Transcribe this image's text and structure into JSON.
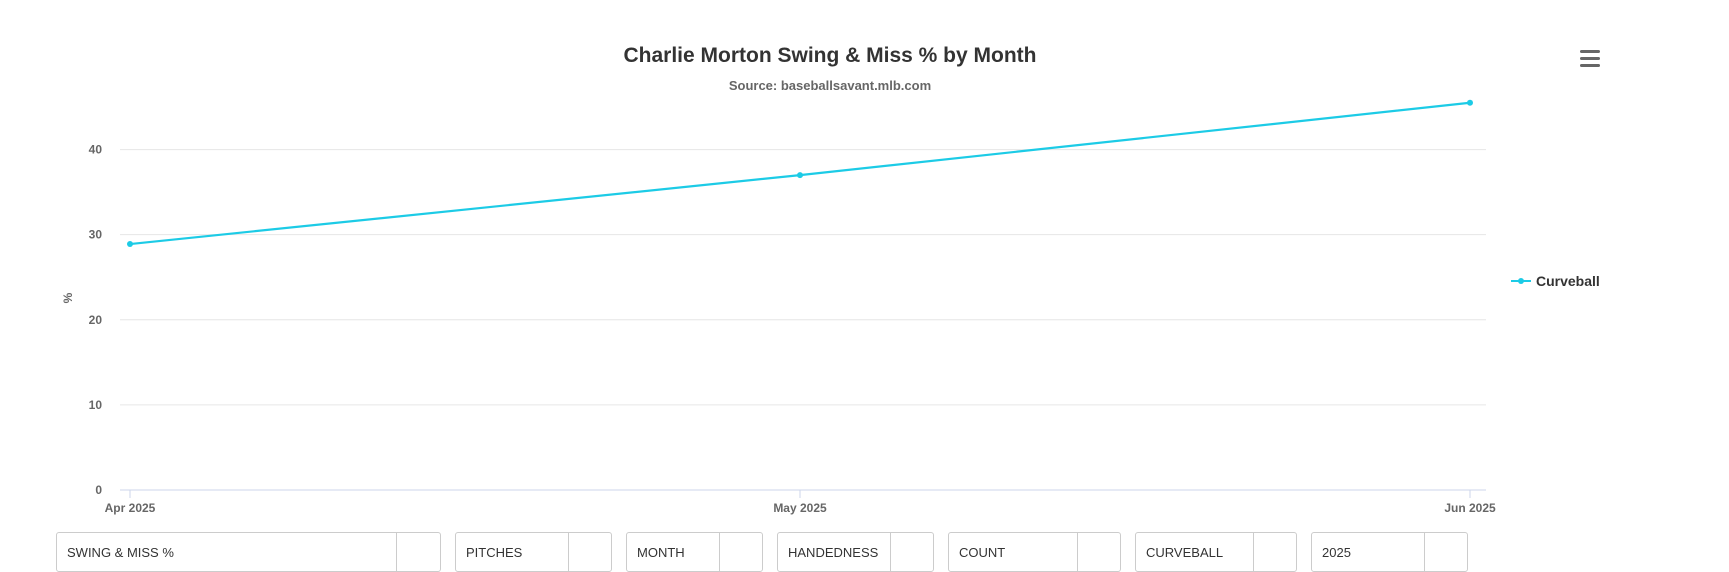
{
  "chart_data": {
    "type": "line",
    "title": "Charlie Morton Swing & Miss % by Month",
    "subtitle": "Source: baseballsavant.mlb.com",
    "xlabel": "",
    "ylabel": "%",
    "x": [
      "Apr 2025",
      "May 2025",
      "Jun 2025"
    ],
    "ylim": [
      0,
      47
    ],
    "yticks": [
      0,
      10,
      20,
      30,
      40
    ],
    "grid": true,
    "legend": "right",
    "series": [
      {
        "name": "Curveball",
        "color": "#1ccbe6",
        "values": [
          28.9,
          37.0,
          45.5
        ]
      }
    ]
  },
  "menu": {
    "icon": "hamburger-menu-icon"
  },
  "filters": [
    {
      "label": "SWING & MISS %"
    },
    {
      "label": "PITCHES"
    },
    {
      "label": "MONTH"
    },
    {
      "label": "HANDEDNESS"
    },
    {
      "label": "COUNT"
    },
    {
      "label": "CURVEBALL"
    },
    {
      "label": "2025"
    }
  ]
}
